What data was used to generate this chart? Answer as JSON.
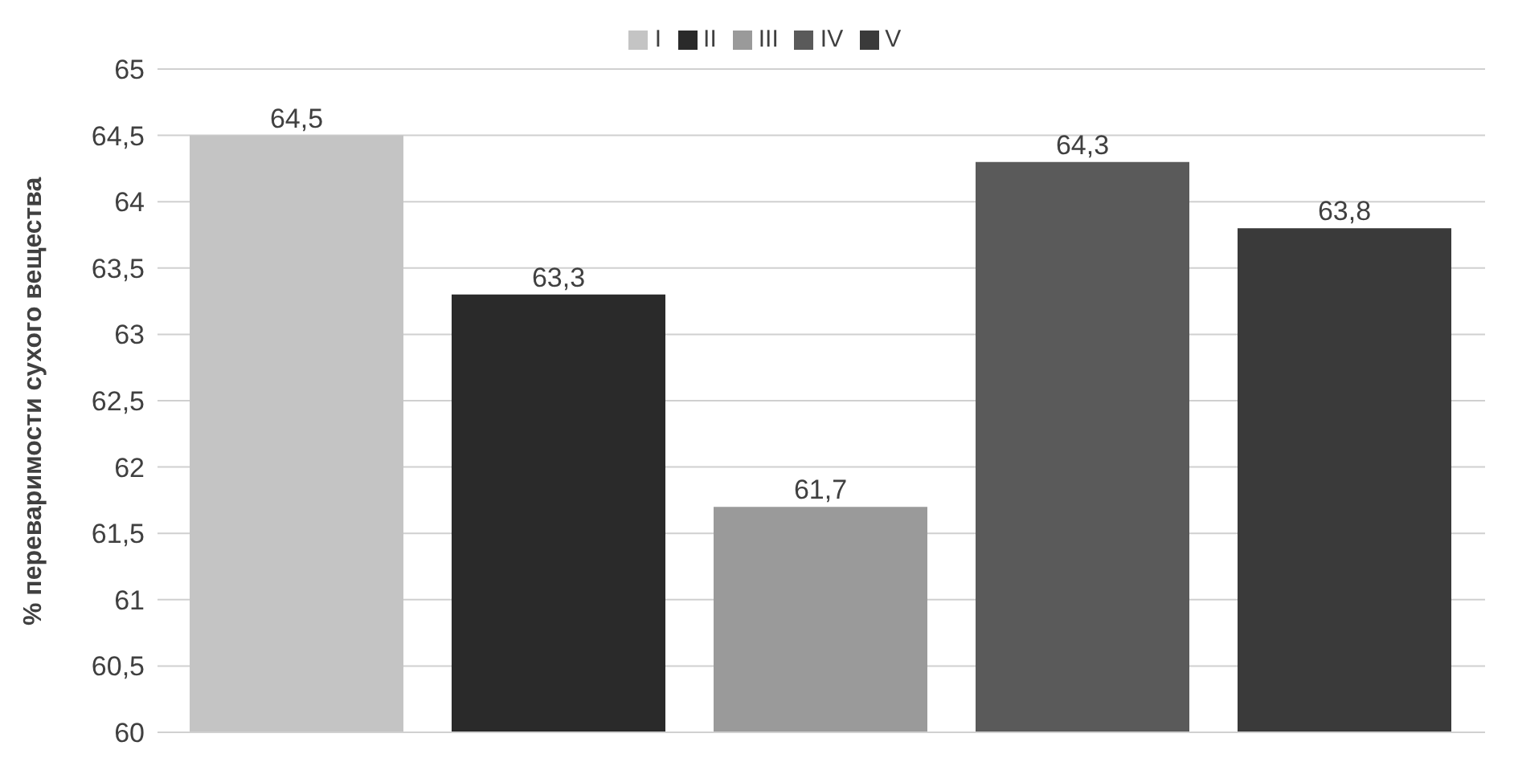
{
  "chart_data": {
    "type": "bar",
    "ylabel": "% переваримости сухого вещества",
    "categories": [
      null
    ],
    "series": [
      {
        "name": "I",
        "color": "#c4c4c4",
        "values": [
          64.5
        ],
        "value_labels": [
          "64,5"
        ]
      },
      {
        "name": "II",
        "color": "#2a2a2a",
        "values": [
          63.3
        ],
        "value_labels": [
          "63,3"
        ]
      },
      {
        "name": "III",
        "color": "#9a9a9a",
        "values": [
          61.7
        ],
        "value_labels": [
          "61,7"
        ]
      },
      {
        "name": "IV",
        "color": "#5a5a5a",
        "values": [
          64.3
        ],
        "value_labels": [
          "64,3"
        ]
      },
      {
        "name": "V",
        "color": "#3a3a3a",
        "values": [
          63.8
        ],
        "value_labels": [
          "63,8"
        ]
      }
    ],
    "ylim": [
      60,
      65
    ],
    "yticks": [
      {
        "value": 60,
        "label": "60"
      },
      {
        "value": 60.5,
        "label": "60,5"
      },
      {
        "value": 61,
        "label": "61"
      },
      {
        "value": 61.5,
        "label": "61,5"
      },
      {
        "value": 62,
        "label": "62"
      },
      {
        "value": 62.5,
        "label": "62,5"
      },
      {
        "value": 63,
        "label": "63"
      },
      {
        "value": 63.5,
        "label": "63,5"
      },
      {
        "value": 64,
        "label": "64"
      },
      {
        "value": 64.5,
        "label": "64,5"
      },
      {
        "value": 65,
        "label": "65"
      }
    ],
    "grid": "y",
    "legend": "top"
  }
}
